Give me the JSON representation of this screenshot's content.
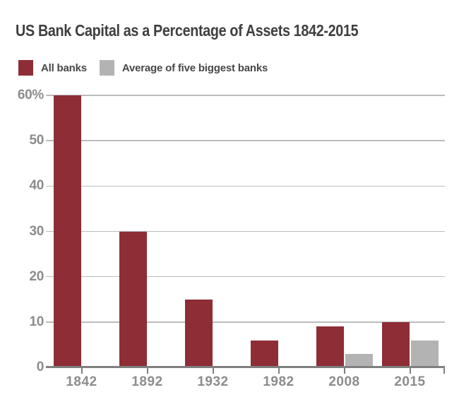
{
  "chart_data": {
    "type": "bar",
    "title": "US Bank Capital as a Percentage of Assets 1842-2015",
    "categories": [
      "1842",
      "1892",
      "1932",
      "1982",
      "2008",
      "2015"
    ],
    "series": [
      {
        "name": "All banks",
        "color": "#8e2d36",
        "values": [
          60,
          30,
          15,
          6,
          9,
          10
        ]
      },
      {
        "name": "Average of five biggest banks",
        "color": "#b3b3b3",
        "values": [
          null,
          null,
          null,
          null,
          3,
          6
        ]
      }
    ],
    "xlabel": "",
    "ylabel": "",
    "ylim": [
      0,
      60
    ],
    "ytick_interval": 10,
    "ytick_labels": [
      "0",
      "10",
      "20",
      "30",
      "40",
      "50",
      "60%"
    ],
    "grid": true,
    "legend_position": "top-left"
  },
  "legend": [
    {
      "label": "All banks",
      "color": "#8e2d36"
    },
    {
      "label": "Average of five biggest banks",
      "color": "#b3b3b3"
    }
  ],
  "colors": {
    "background": "#ffffff",
    "title_text": "#3f3f3f",
    "legend_text": "#474747",
    "axis_label_text": "#8c8c8c",
    "gridline": "#bcbcbc",
    "axis_line": "#7f7f7f",
    "all_banks_bar": "#8e2d36",
    "big_banks_bar": "#b3b3b3"
  }
}
